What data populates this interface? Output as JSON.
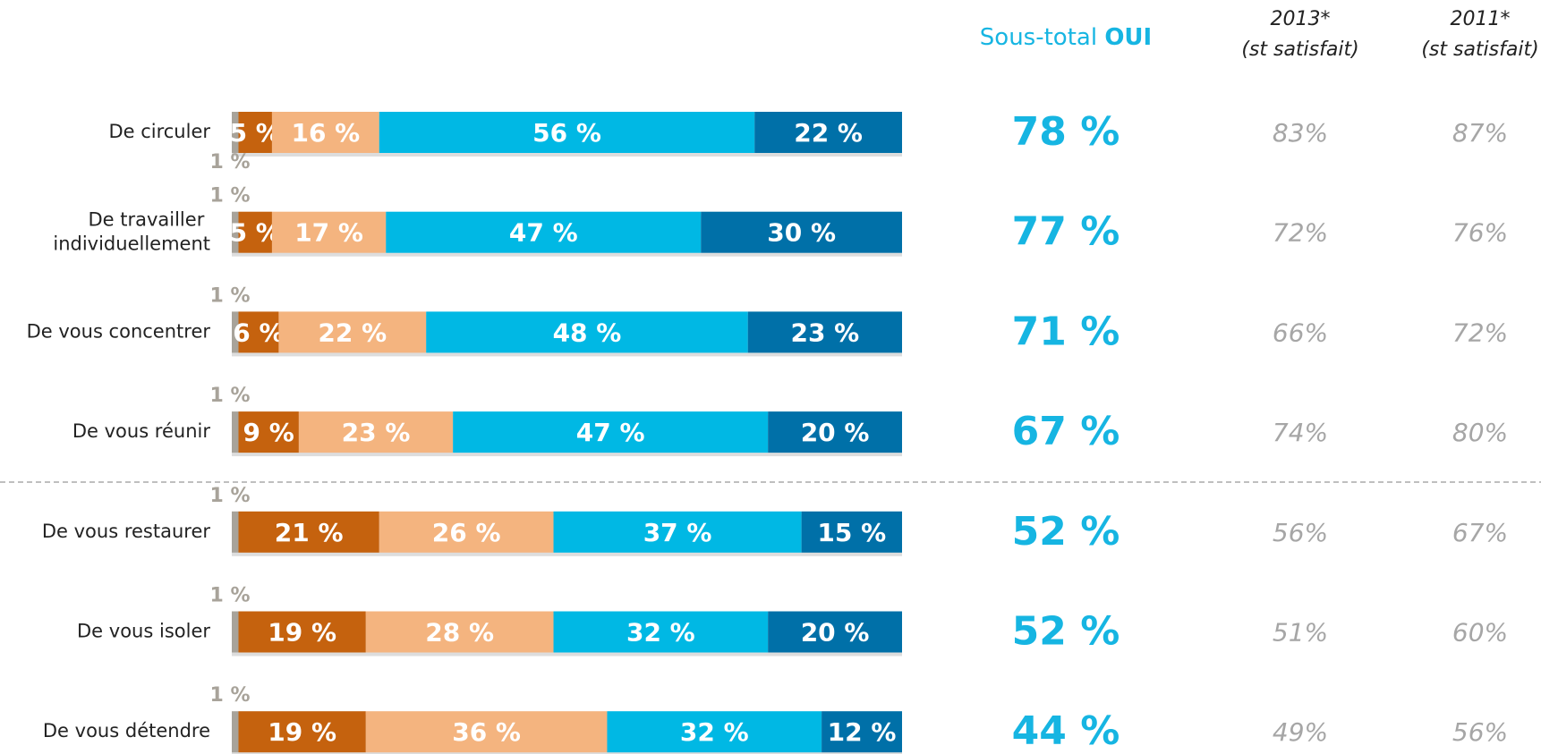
{
  "chart_data": {
    "type": "stacked-bar-horizontal",
    "categories": [
      "De circuler",
      "De travailler individuellement",
      "De vous concentrer",
      "De vous réunir",
      "De vous restaurer",
      "De vous isoler",
      "De vous détendre"
    ],
    "xlim": [
      0,
      100
    ],
    "series": [
      {
        "color": "#a8a39a",
        "values": [
          1,
          1,
          1,
          1,
          1,
          1,
          1
        ],
        "value_labels": [
          "1 %",
          "1 %",
          "1 %",
          "1 %",
          "1 %",
          "1 %",
          "1 %"
        ]
      },
      {
        "color": "#c5620e",
        "values": [
          5,
          5,
          6,
          9,
          21,
          19,
          19
        ],
        "value_labels": [
          "5 %",
          "5 %",
          "6 %",
          "9 %",
          "21 %",
          "19 %",
          "19 %"
        ]
      },
      {
        "color": "#f4b47f",
        "values": [
          16,
          17,
          22,
          23,
          26,
          28,
          36
        ],
        "value_labels": [
          "16 %",
          "17 %",
          "22 %",
          "23 %",
          "26 %",
          "28 %",
          "36 %"
        ]
      },
      {
        "color": "#00b8e4",
        "values": [
          56,
          47,
          48,
          47,
          37,
          32,
          32
        ],
        "value_labels": [
          "56 %",
          "47 %",
          "48 %",
          "47 %",
          "37 %",
          "32 %",
          "32 %"
        ]
      },
      {
        "color": "#0070a8",
        "values": [
          22,
          30,
          23,
          20,
          15,
          20,
          12
        ],
        "value_labels": [
          "22 %",
          "30 %",
          "23 %",
          "20 %",
          "15 %",
          "20 %",
          "12 %"
        ]
      }
    ],
    "columns": [
      {
        "header": [
          "Sous-total ",
          "OUI"
        ],
        "color": "#16b5e2",
        "values": [
          78,
          77,
          71,
          67,
          52,
          52,
          44
        ],
        "value_labels": [
          "78 %",
          "77 %",
          "71 %",
          "67 %",
          "52 %",
          "52 %",
          "44 %"
        ]
      },
      {
        "header": [
          "2013*",
          "(st satisfait)"
        ],
        "color": "#a6a6a6",
        "values": [
          83,
          72,
          66,
          74,
          56,
          51,
          49
        ],
        "value_labels": [
          "83%",
          "72%",
          "66%",
          "74%",
          "56%",
          "51%",
          "49%"
        ]
      },
      {
        "header": [
          "2011*",
          "(st satisfait)"
        ],
        "color": "#a6a6a6",
        "values": [
          87,
          76,
          72,
          80,
          67,
          60,
          56
        ],
        "value_labels": [
          "87%",
          "76%",
          "72%",
          "80%",
          "67%",
          "60%",
          "56%"
        ]
      }
    ]
  }
}
